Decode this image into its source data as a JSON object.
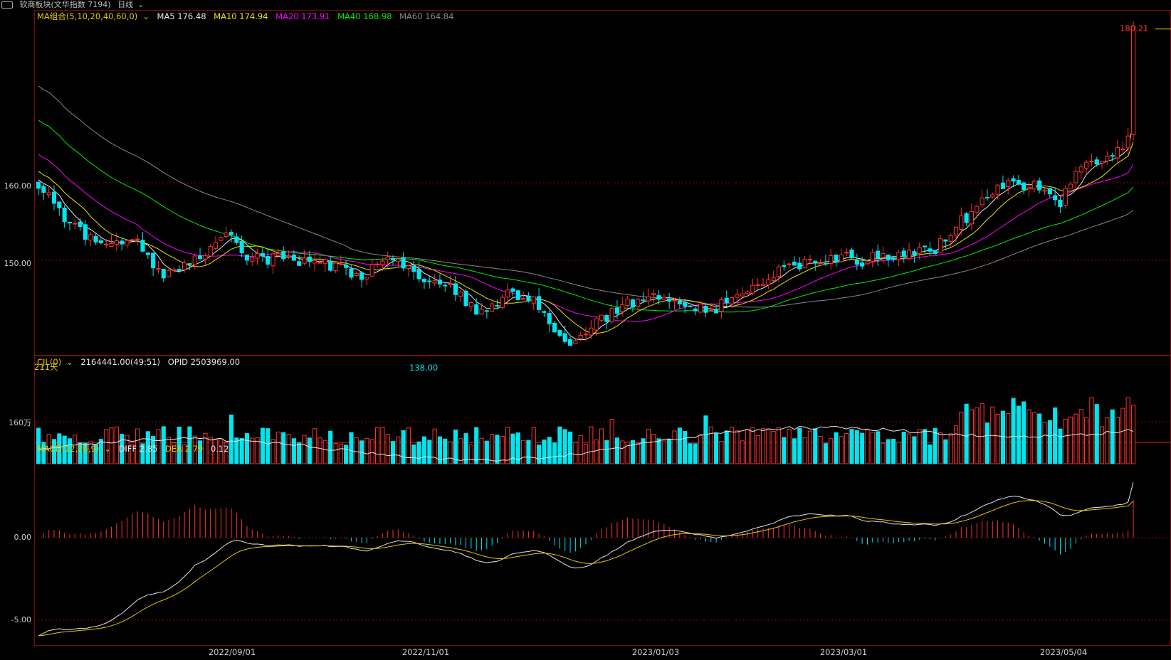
{
  "titlebar": {
    "block_name": "软商板块(文华指数 7194)",
    "period": "日线",
    "period_icon": "chevron-down-icon"
  },
  "main_legend": {
    "ma_group": "MA组合(5,10,20,40,60,0)",
    "ma5": "MA5 176.48",
    "ma10": "MA10 174.94",
    "ma20": "MA20 173.91",
    "ma40": "MA40 168.98",
    "ma60": "MA60 164.84"
  },
  "volume_legend": {
    "cjl": "CJL(0)",
    "value": "2164441.00(49:51)",
    "opid": "OPID 2503969.00"
  },
  "macd_legend": {
    "name": "MACD(12,26,9)",
    "diff": "DIFF 2.85",
    "dea": "DEA 2.79",
    "macd": "0.12"
  },
  "price_axis": [
    "160.00",
    "150.00"
  ],
  "volume_axis": [
    "160万"
  ],
  "macd_axis": [
    "0.00",
    "-5.00"
  ],
  "x_axis": [
    "2022/09/01",
    "2022/11/01",
    "2023/01/03",
    "2023/03/01",
    "2023/05/04"
  ],
  "annotations": {
    "high": "180.21",
    "low": "138.00",
    "days": "211天"
  },
  "colors": {
    "up": "#ff3232",
    "down": "#00e5ee",
    "ma5": "#e6e6e6",
    "ma10": "#e6e600",
    "ma20": "#ff00ff",
    "ma40": "#00ee00",
    "ma60": "#888888",
    "grid": "#7a0d0d"
  },
  "chart_data": {
    "type": "candlestick",
    "bars": 211,
    "price_range": [
      138.0,
      180.21
    ],
    "price_anchors": [
      [
        0,
        160.0
      ],
      [
        5,
        155.5
      ],
      [
        12,
        151.5
      ],
      [
        18,
        153.0
      ],
      [
        24,
        148.0
      ],
      [
        30,
        150.0
      ],
      [
        34,
        152.5
      ],
      [
        36,
        154.0
      ],
      [
        40,
        150.5
      ],
      [
        48,
        150.0
      ],
      [
        56,
        149.5
      ],
      [
        62,
        148.0
      ],
      [
        68,
        150.5
      ],
      [
        74,
        148.0
      ],
      [
        78,
        147.0
      ],
      [
        85,
        143.0
      ],
      [
        90,
        146.0
      ],
      [
        95,
        144.5
      ],
      [
        99,
        141.0
      ],
      [
        103,
        139.0
      ],
      [
        107,
        142.0
      ],
      [
        112,
        144.0
      ],
      [
        118,
        145.5
      ],
      [
        123,
        144.5
      ],
      [
        128,
        143.5
      ],
      [
        132,
        144.5
      ],
      [
        137,
        147.0
      ],
      [
        142,
        148.5
      ],
      [
        147,
        149.5
      ],
      [
        153,
        150.5
      ],
      [
        158,
        150.0
      ],
      [
        162,
        150.5
      ],
      [
        167,
        151.0
      ],
      [
        172,
        151.5
      ],
      [
        177,
        155.0
      ],
      [
        180,
        157.0
      ],
      [
        184,
        159.0
      ],
      [
        188,
        160.0
      ],
      [
        192,
        159.5
      ],
      [
        196,
        157.5
      ],
      [
        200,
        162.0
      ],
      [
        204,
        163.5
      ],
      [
        207,
        164.0
      ],
      [
        209,
        166.0
      ],
      [
        210,
        180.21
      ]
    ],
    "volume_scale_label": "160万",
    "macd_range": [
      -6.5,
      3.5
    ]
  }
}
